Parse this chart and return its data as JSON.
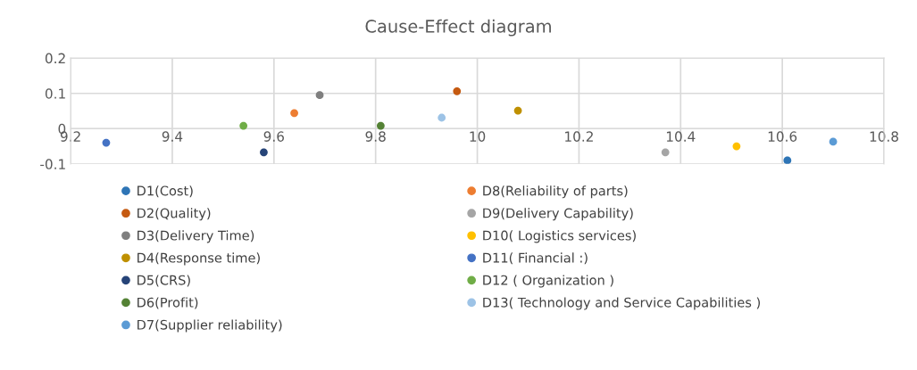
{
  "chart_data": {
    "type": "scatter",
    "title": "Cause-Effect diagram",
    "xlim": [
      9.2,
      10.8
    ],
    "xticks": [
      {
        "value": 9.2,
        "label": "9.2"
      },
      {
        "value": 9.4,
        "label": "9.4"
      },
      {
        "value": 9.6,
        "label": "9.6"
      },
      {
        "value": 9.8,
        "label": "9.8"
      },
      {
        "value": 10,
        "label": "10"
      },
      {
        "value": 10.2,
        "label": "10.2"
      },
      {
        "value": 10.4,
        "label": "10.4"
      },
      {
        "value": 10.6,
        "label": "10.6"
      },
      {
        "value": 10.8,
        "label": "10.8"
      }
    ],
    "ylim": [
      -0.1,
      0.2
    ],
    "yticks": [
      {
        "value": -0.1,
        "label": "-0.1"
      },
      {
        "value": 0,
        "label": "0"
      },
      {
        "value": 0.1,
        "label": "0.1"
      },
      {
        "value": 0.2,
        "label": "0.2"
      }
    ],
    "grid": true,
    "legend": "bottom",
    "marker": "circle",
    "series": [
      {
        "name": "D1(Cost)",
        "color": "#2e75b6",
        "x": [
          10.61
        ],
        "values": [
          -0.09
        ]
      },
      {
        "name": "D2(Quality)",
        "color": "#c55a11",
        "x": [
          9.96
        ],
        "values": [
          0.106
        ]
      },
      {
        "name": "D3(Delivery Time)",
        "color": "#7f7f7f",
        "x": [
          9.69
        ],
        "values": [
          0.095
        ]
      },
      {
        "name": "D4(Response time)",
        "color": "#bf9000",
        "x": [
          10.08
        ],
        "values": [
          0.051
        ]
      },
      {
        "name": "D5(CRS)",
        "color": "#264478",
        "x": [
          9.58
        ],
        "values": [
          -0.067
        ]
      },
      {
        "name": "D6(Profit)",
        "color": "#548235",
        "x": [
          9.81
        ],
        "values": [
          0.008
        ]
      },
      {
        "name": "D7(Supplier reliability)",
        "color": "#5b9bd5",
        "x": [
          10.7
        ],
        "values": [
          -0.037
        ]
      },
      {
        "name": "D8(Reliability of parts)",
        "color": "#ed7d31",
        "x": [
          9.64
        ],
        "values": [
          0.044
        ]
      },
      {
        "name": "D9(Delivery Capability)",
        "color": "#a5a5a5",
        "x": [
          10.37
        ],
        "values": [
          -0.067
        ]
      },
      {
        "name": "D10( Logistics services)",
        "color": "#ffc000",
        "x": [
          10.51
        ],
        "values": [
          -0.05
        ]
      },
      {
        "name": "D11( Financial :)",
        "color": "#4472c4",
        "x": [
          9.27
        ],
        "values": [
          -0.04
        ]
      },
      {
        "name": "D12 ( Organization )",
        "color": "#70ad47",
        "x": [
          9.54
        ],
        "values": [
          0.008
        ]
      },
      {
        "name": "D13( Technology and Service Capabilities )",
        "color": "#9dc3e6",
        "x": [
          9.93
        ],
        "values": [
          0.031
        ]
      }
    ]
  }
}
